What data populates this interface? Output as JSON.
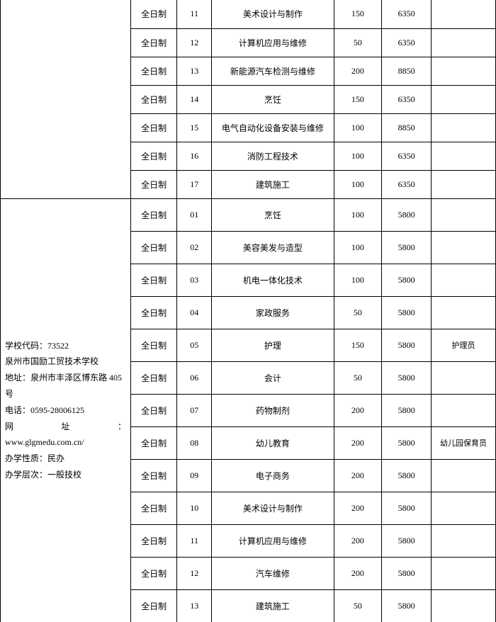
{
  "school1": {
    "rows": [
      {
        "type": "全日制",
        "num": "11",
        "major": "美术设计与制作",
        "quota": "150",
        "fee": "6350",
        "note": ""
      },
      {
        "type": "全日制",
        "num": "12",
        "major": "计算机应用与维修",
        "quota": "50",
        "fee": "6350",
        "note": ""
      },
      {
        "type": "全日制",
        "num": "13",
        "major": "新能源汽车检测与维修",
        "quota": "200",
        "fee": "8850",
        "note": ""
      },
      {
        "type": "全日制",
        "num": "14",
        "major": "烹饪",
        "quota": "150",
        "fee": "6350",
        "note": ""
      },
      {
        "type": "全日制",
        "num": "15",
        "major": "电气自动化设备安装与维修",
        "quota": "100",
        "fee": "8850",
        "note": ""
      },
      {
        "type": "全日制",
        "num": "16",
        "major": "消防工程技术",
        "quota": "100",
        "fee": "6350",
        "note": ""
      },
      {
        "type": "全日制",
        "num": "17",
        "major": "建筑施工",
        "quota": "100",
        "fee": "6350",
        "note": ""
      }
    ]
  },
  "school2": {
    "info": {
      "code_label": "学校代码：",
      "code": "73522",
      "name": "泉州市国励工贸技术学校",
      "addr_label": "地址：",
      "addr": "泉州市丰泽区博东路 405 号",
      "tel_label": "电话：",
      "tel": "0595-28006125",
      "url_label": "网",
      "url_label2": "址",
      "url_colon": "：",
      "url": "www.glgmedu.com.cn/",
      "nature_label": "办学性质：",
      "nature": "民办",
      "level_label": "办学层次：",
      "level": "一般技校"
    },
    "rows": [
      {
        "type": "全日制",
        "num": "01",
        "major": "烹饪",
        "quota": "100",
        "fee": "5800",
        "note": ""
      },
      {
        "type": "全日制",
        "num": "02",
        "major": "美容美发与造型",
        "quota": "100",
        "fee": "5800",
        "note": ""
      },
      {
        "type": "全日制",
        "num": "03",
        "major": "机电一体化技术",
        "quota": "100",
        "fee": "5800",
        "note": ""
      },
      {
        "type": "全日制",
        "num": "04",
        "major": "家政服务",
        "quota": "50",
        "fee": "5800",
        "note": ""
      },
      {
        "type": "全日制",
        "num": "05",
        "major": "护理",
        "quota": "150",
        "fee": "5800",
        "note": "护理员"
      },
      {
        "type": "全日制",
        "num": "06",
        "major": "会计",
        "quota": "50",
        "fee": "5800",
        "note": ""
      },
      {
        "type": "全日制",
        "num": "07",
        "major": "药物制剂",
        "quota": "200",
        "fee": "5800",
        "note": ""
      },
      {
        "type": "全日制",
        "num": "08",
        "major": "幼儿教育",
        "quota": "200",
        "fee": "5800",
        "note": "幼儿园保育员"
      },
      {
        "type": "全日制",
        "num": "09",
        "major": "电子商务",
        "quota": "200",
        "fee": "5800",
        "note": ""
      },
      {
        "type": "全日制",
        "num": "10",
        "major": "美术设计与制作",
        "quota": "200",
        "fee": "5800",
        "note": ""
      },
      {
        "type": "全日制",
        "num": "11",
        "major": "计算机应用与维修",
        "quota": "200",
        "fee": "5800",
        "note": ""
      },
      {
        "type": "全日制",
        "num": "12",
        "major": "汽车维修",
        "quota": "200",
        "fee": "5800",
        "note": ""
      },
      {
        "type": "全日制",
        "num": "13",
        "major": "建筑施工",
        "quota": "50",
        "fee": "5800",
        "note": ""
      }
    ]
  }
}
